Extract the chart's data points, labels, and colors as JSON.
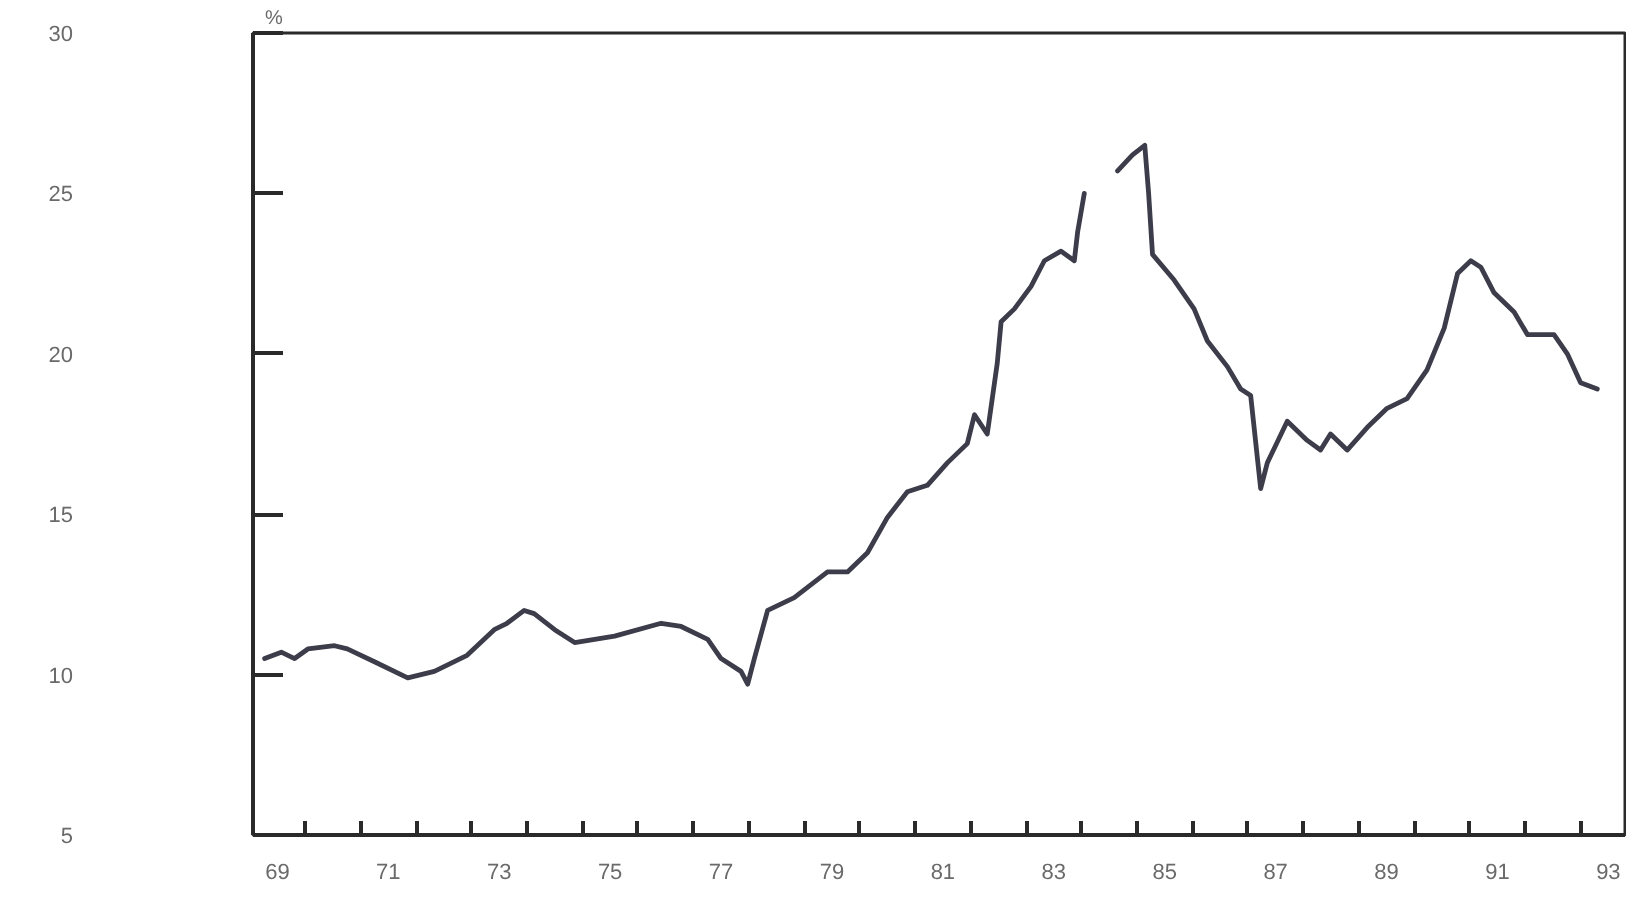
{
  "chart_data": {
    "type": "line",
    "ylabel": "%",
    "xlim": [
      68.56,
      93.3
    ],
    "ylim": [
      5,
      30
    ],
    "xticks": [
      69,
      71,
      73,
      75,
      77,
      79,
      81,
      83,
      85,
      87,
      89,
      91,
      93,
      {
        "value": 69.5,
        "label": null
      },
      {
        "value": 70.5,
        "label": null
      },
      {
        "value": 71.5,
        "label": null
      },
      {
        "value": 72.5,
        "label": null
      },
      {
        "value": 73.5,
        "label": null
      },
      {
        "value": 74.5,
        "label": null
      },
      {
        "value": 75.5,
        "label": null
      },
      {
        "value": 76.5,
        "label": null
      },
      {
        "value": 77.5,
        "label": null
      },
      {
        "value": 78.5,
        "label": null
      },
      {
        "value": 79.5,
        "label": null
      },
      {
        "value": 80.5,
        "label": null
      },
      {
        "value": 81.5,
        "label": null
      },
      {
        "value": 82.5,
        "label": null
      },
      {
        "value": 83.5,
        "label": null
      },
      {
        "value": 84.5,
        "label": null
      },
      {
        "value": 85.5,
        "label": null
      },
      {
        "value": 86.5,
        "label": null
      },
      {
        "value": 87.5,
        "label": null
      },
      {
        "value": 88.5,
        "label": null
      },
      {
        "value": 89.5,
        "label": null
      },
      {
        "value": 90.5,
        "label": null
      },
      {
        "value": 91.5,
        "label": null
      },
      {
        "value": 92.5,
        "label": null
      }
    ],
    "yticks": [
      5,
      10,
      15,
      20,
      25,
      30
    ],
    "grid": false,
    "series": [
      {
        "color": "#3c3c4a",
        "x": [
          68.77,
          69.07,
          69.31,
          69.55,
          70.03,
          70.26,
          70.75,
          71.35,
          71.83,
          72.42,
          72.91,
          73.14,
          73.45,
          73.63,
          74.0,
          74.36,
          75.08,
          75.92,
          76.28,
          76.76,
          77.0,
          77.36,
          77.48,
          77.6,
          77.84,
          78.32,
          78.92,
          79.28,
          79.64,
          80.0,
          80.36,
          80.72,
          81.08,
          81.44,
          81.57,
          81.8,
          81.98,
          82.05,
          82.29,
          82.59,
          82.83,
          83.13,
          83.37,
          83.43,
          83.49,
          83.55,
          83.85,
          84.15,
          84.42,
          84.64,
          84.71,
          84.78,
          85.17,
          85.53,
          85.77,
          86.13,
          86.37,
          86.55,
          86.73,
          86.85,
          87.21,
          87.57,
          87.81,
          87.99,
          88.29,
          88.65,
          89.01,
          89.37,
          89.73,
          90.04,
          90.28,
          90.52,
          90.7,
          90.94,
          91.3,
          91.54,
          92.02,
          92.26,
          92.5,
          92.8
        ],
        "values": [
          10.5,
          10.7,
          10.5,
          10.8,
          10.9,
          10.8,
          10.4,
          9.9,
          10.1,
          10.6,
          11.4,
          11.6,
          12.0,
          11.9,
          11.4,
          11.0,
          11.2,
          11.6,
          11.5,
          11.1,
          10.5,
          10.1,
          9.7,
          10.5,
          12.0,
          12.4,
          13.2,
          13.2,
          13.8,
          14.9,
          15.7,
          15.9,
          16.6,
          17.2,
          18.1,
          17.5,
          19.7,
          21.0,
          21.4,
          22.1,
          22.9,
          23.2,
          22.9,
          23.8,
          24.4,
          25.0,
          null,
          25.7,
          26.2,
          26.5,
          25.0,
          23.1,
          22.3,
          21.4,
          20.4,
          19.6,
          18.9,
          18.7,
          15.8,
          16.6,
          17.9,
          17.3,
          17.0,
          17.5,
          17.0,
          17.7,
          18.3,
          18.6,
          19.5,
          20.8,
          22.5,
          22.9,
          22.7,
          21.9,
          21.3,
          20.6,
          20.6,
          20.0,
          19.1,
          18.9
        ]
      }
    ]
  }
}
